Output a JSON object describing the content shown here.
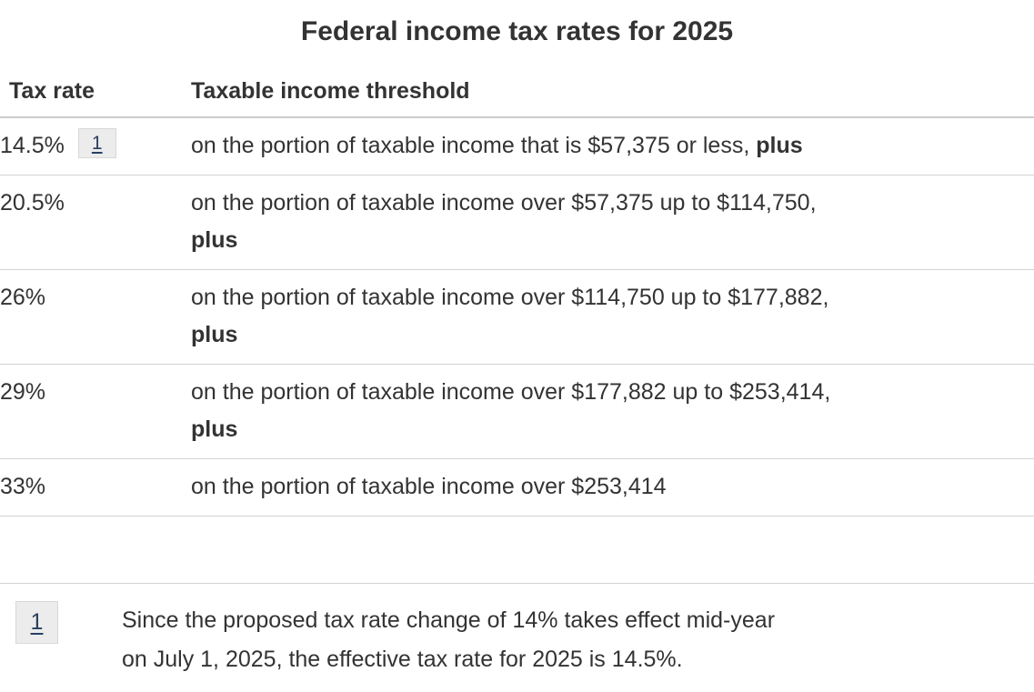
{
  "title": "Federal income tax rates for 2025",
  "table": {
    "headers": {
      "rate": "Tax rate",
      "threshold": "Taxable income threshold"
    },
    "rows": [
      {
        "rate": "14.5%",
        "footnote_ref": "1",
        "threshold": "on the portion of taxable income that is $57,375 or less,",
        "bold_suffix": "plus"
      },
      {
        "rate": "20.5%",
        "threshold": "on the portion of taxable income over $57,375 up to $114,750,",
        "bold_suffix": "plus"
      },
      {
        "rate": "26%",
        "threshold": "on the portion of taxable income over $114,750 up to $177,882,",
        "bold_suffix": "plus"
      },
      {
        "rate": "29%",
        "threshold": "on the portion of taxable income over $177,882 up to $253,414,",
        "bold_suffix": "plus"
      },
      {
        "rate": "33%",
        "threshold": "on the portion of taxable income over $253,414",
        "bold_suffix": ""
      }
    ]
  },
  "footnote": {
    "id": "1",
    "line1": "Since the proposed tax rate change of 14% takes effect mid-year",
    "line2": "on July 1, 2025, the effective tax rate for 2025 is 14.5%."
  },
  "colors": {
    "text": "#333333",
    "link": "#284162",
    "badge_background": "#ececec",
    "badge_border": "#d8d8d8",
    "row_border": "#d2d2d2",
    "header_border": "#cccccc"
  }
}
